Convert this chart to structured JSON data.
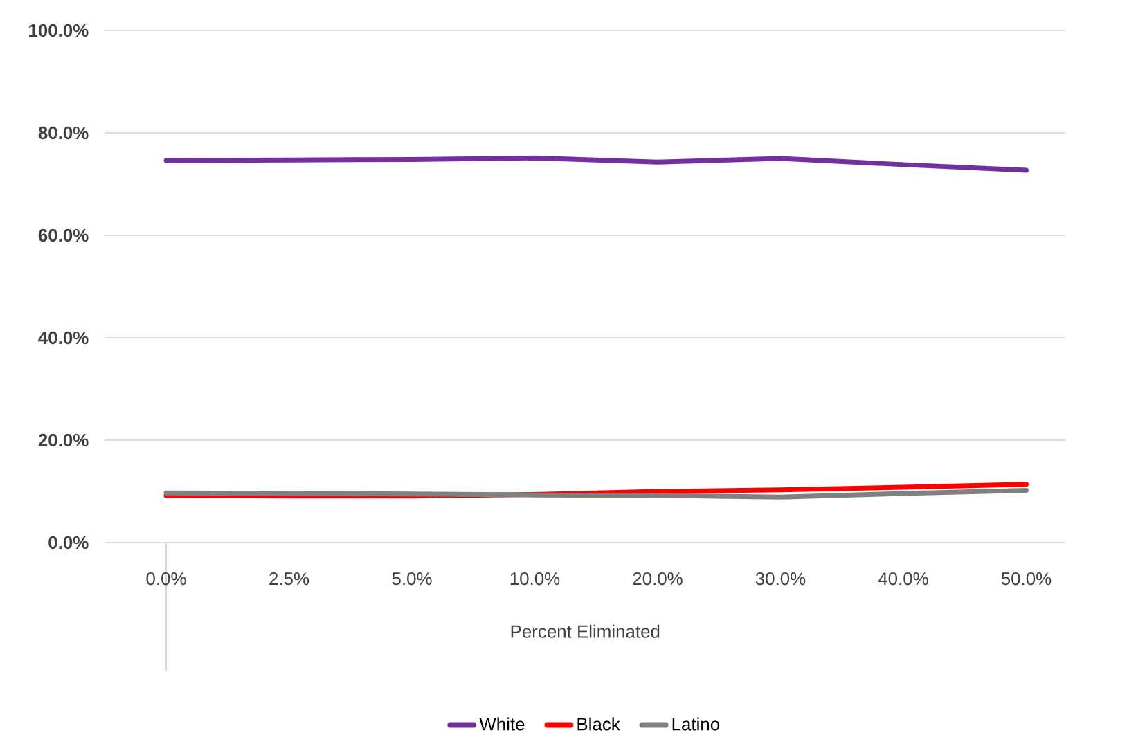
{
  "chart_data": {
    "type": "line",
    "xlabel": "Percent Eliminated",
    "categories": [
      "0.0%",
      "2.5%",
      "5.0%",
      "10.0%",
      "20.0%",
      "30.0%",
      "40.0%",
      "50.0%"
    ],
    "series": [
      {
        "name": "White",
        "color": "#7030a0",
        "values": [
          74.6,
          74.7,
          74.8,
          75.1,
          74.3,
          75.0,
          73.8,
          72.7
        ]
      },
      {
        "name": "Black",
        "color": "#ff0000",
        "values": [
          9.2,
          9.1,
          9.1,
          9.4,
          10.0,
          10.3,
          10.8,
          11.4
        ]
      },
      {
        "name": "Latino",
        "color": "#808080",
        "values": [
          9.7,
          9.6,
          9.5,
          9.3,
          9.2,
          8.9,
          9.6,
          10.2
        ]
      }
    ],
    "ylim": [
      0,
      100
    ],
    "yticks": [
      {
        "value": 0,
        "label": "0.0%"
      },
      {
        "value": 20,
        "label": "20.0%"
      },
      {
        "value": 40,
        "label": "40.0%"
      },
      {
        "value": 60,
        "label": "60.0%"
      },
      {
        "value": 80,
        "label": "80.0%"
      },
      {
        "value": 100,
        "label": "100.0%"
      }
    ],
    "grid": "y",
    "legend": "bottom",
    "marker": "none",
    "line_style": "solid"
  }
}
